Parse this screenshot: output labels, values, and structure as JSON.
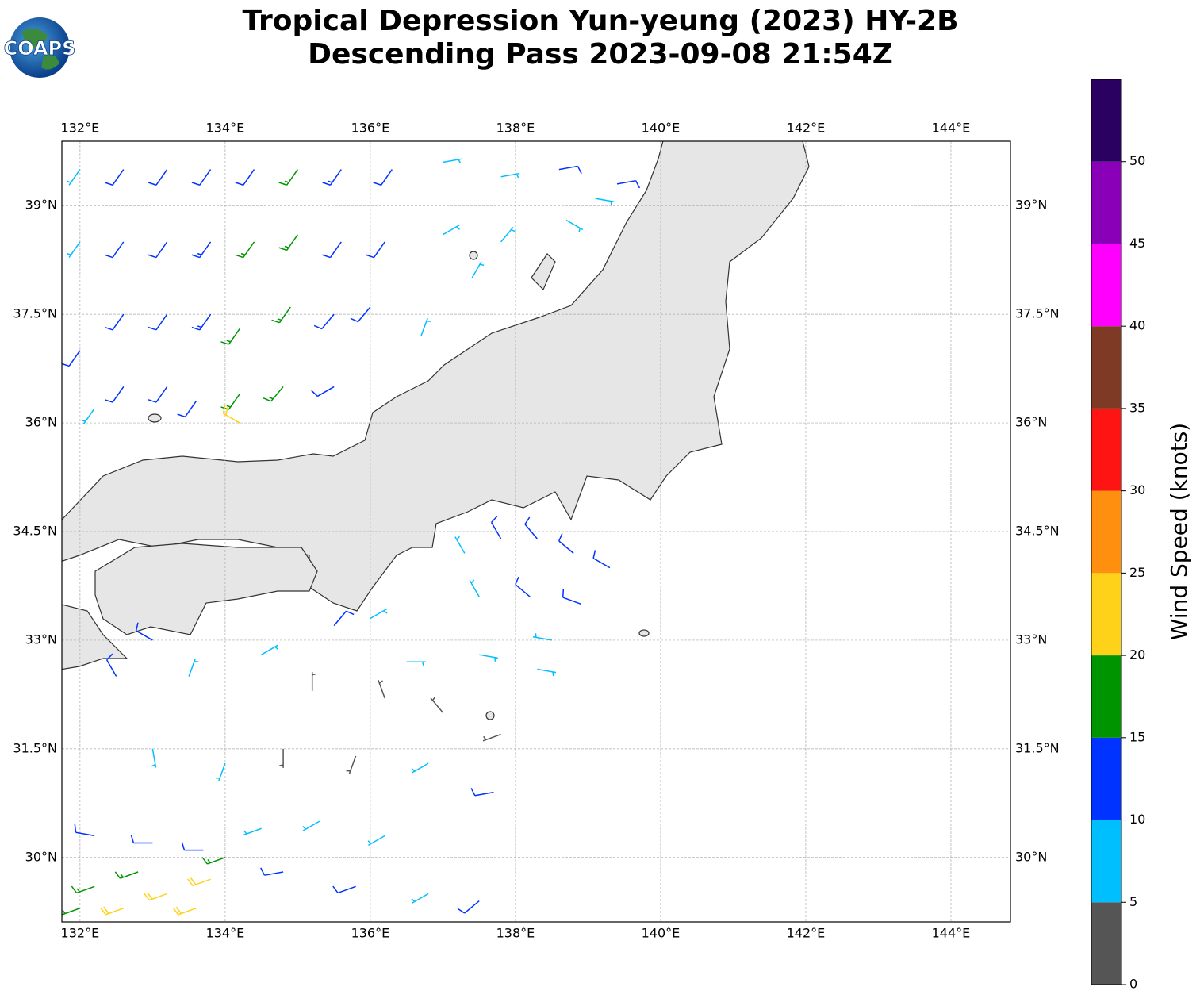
{
  "logo": "COAPS",
  "chart_data": {
    "type": "wind-barbs",
    "title": [
      "Tropical Depression Yun-yeung (2023) HY-2B",
      "Descending Pass 2023-09-08 21:54Z"
    ],
    "xlim": [
      131.75,
      144.82
    ],
    "ylim": [
      29.11,
      39.89
    ],
    "xticks": [
      {
        "value": 132,
        "label": "132°E"
      },
      {
        "value": 134,
        "label": "134°E"
      },
      {
        "value": 136,
        "label": "136°E"
      },
      {
        "value": 138,
        "label": "138°E"
      },
      {
        "value": 140,
        "label": "140°E"
      },
      {
        "value": 142,
        "label": "142°E"
      },
      {
        "value": 144,
        "label": "144°E"
      }
    ],
    "yticks": [
      {
        "value": 30,
        "label": "30°N"
      },
      {
        "value": 31.5,
        "label": "31.5°N"
      },
      {
        "value": 33,
        "label": "33°N"
      },
      {
        "value": 34.5,
        "label": "34.5°N"
      },
      {
        "value": 36,
        "label": "36°N"
      },
      {
        "value": 37.5,
        "label": "37.5°N"
      },
      {
        "value": 39,
        "label": "39°N"
      }
    ],
    "grid": true,
    "colorbar": {
      "label": "Wind Speed (knots)",
      "lim": [
        0,
        55
      ],
      "ticks": [
        0,
        5,
        10,
        15,
        20,
        25,
        30,
        35,
        40,
        45,
        50
      ],
      "colors": [
        "#555555",
        "#00bfff",
        "#0033ff",
        "#009400",
        "#ffd21a",
        "#ff8f0f",
        "#ff1414",
        "#7f3a25",
        "#ff00ff",
        "#8a00b8",
        "#2a0060"
      ]
    },
    "barbs": [
      {
        "lon": 132.0,
        "lat": 39.5,
        "speed": 8,
        "direction": 215
      },
      {
        "lon": 132.0,
        "lat": 38.5,
        "speed": 8,
        "direction": 215
      },
      {
        "lon": 132.0,
        "lat": 37.0,
        "speed": 11,
        "direction": 215
      },
      {
        "lon": 132.2,
        "lat": 36.2,
        "speed": 8,
        "direction": 215
      },
      {
        "lon": 132.6,
        "lat": 39.5,
        "speed": 12,
        "direction": 215
      },
      {
        "lon": 132.6,
        "lat": 38.5,
        "speed": 12,
        "direction": 215
      },
      {
        "lon": 132.6,
        "lat": 37.5,
        "speed": 12,
        "direction": 215
      },
      {
        "lon": 132.6,
        "lat": 36.5,
        "speed": 11,
        "direction": 215
      },
      {
        "lon": 133.2,
        "lat": 39.5,
        "speed": 12,
        "direction": 215
      },
      {
        "lon": 133.2,
        "lat": 38.5,
        "speed": 12,
        "direction": 215
      },
      {
        "lon": 133.2,
        "lat": 37.5,
        "speed": 12,
        "direction": 215
      },
      {
        "lon": 133.2,
        "lat": 36.5,
        "speed": 12,
        "direction": 215
      },
      {
        "lon": 133.8,
        "lat": 39.5,
        "speed": 12,
        "direction": 215
      },
      {
        "lon": 133.8,
        "lat": 38.5,
        "speed": 13,
        "direction": 215
      },
      {
        "lon": 133.8,
        "lat": 37.5,
        "speed": 13,
        "direction": 215
      },
      {
        "lon": 133.6,
        "lat": 36.3,
        "speed": 12,
        "direction": 215
      },
      {
        "lon": 134.4,
        "lat": 39.5,
        "speed": 12,
        "direction": 215
      },
      {
        "lon": 134.4,
        "lat": 38.5,
        "speed": 16,
        "direction": 215
      },
      {
        "lon": 134.2,
        "lat": 37.3,
        "speed": 17,
        "direction": 215
      },
      {
        "lon": 134.2,
        "lat": 36.4,
        "speed": 17,
        "direction": 215
      },
      {
        "lon": 135.0,
        "lat": 39.5,
        "speed": 17,
        "direction": 215
      },
      {
        "lon": 135.0,
        "lat": 38.6,
        "speed": 17,
        "direction": 215
      },
      {
        "lon": 134.9,
        "lat": 37.6,
        "speed": 17,
        "direction": 215
      },
      {
        "lon": 134.8,
        "lat": 36.5,
        "speed": 17,
        "direction": 220
      },
      {
        "lon": 135.6,
        "lat": 39.5,
        "speed": 13,
        "direction": 215
      },
      {
        "lon": 135.6,
        "lat": 38.5,
        "speed": 12,
        "direction": 215
      },
      {
        "lon": 135.5,
        "lat": 37.5,
        "speed": 12,
        "direction": 220
      },
      {
        "lon": 135.5,
        "lat": 36.5,
        "speed": 11,
        "direction": 240
      },
      {
        "lon": 136.3,
        "lat": 39.5,
        "speed": 11,
        "direction": 215
      },
      {
        "lon": 136.2,
        "lat": 38.5,
        "speed": 11,
        "direction": 215
      },
      {
        "lon": 136.0,
        "lat": 37.6,
        "speed": 10,
        "direction": 220
      },
      {
        "lon": 134.2,
        "lat": 36.0,
        "speed": 22,
        "direction": 300
      },
      {
        "lon": 137.0,
        "lat": 39.6,
        "speed": 8,
        "direction": 80
      },
      {
        "lon": 137.8,
        "lat": 39.4,
        "speed": 8,
        "direction": 80
      },
      {
        "lon": 138.6,
        "lat": 39.5,
        "speed": 11,
        "direction": 80
      },
      {
        "lon": 139.4,
        "lat": 39.3,
        "speed": 11,
        "direction": 80
      },
      {
        "lon": 137.0,
        "lat": 38.6,
        "speed": 8,
        "direction": 60
      },
      {
        "lon": 137.8,
        "lat": 38.5,
        "speed": 8,
        "direction": 40
      },
      {
        "lon": 138.7,
        "lat": 38.8,
        "speed": 7,
        "direction": 120
      },
      {
        "lon": 139.1,
        "lat": 39.1,
        "speed": 8,
        "direction": 100
      },
      {
        "lon": 137.4,
        "lat": 38.0,
        "speed": 7,
        "direction": 30
      },
      {
        "lon": 136.7,
        "lat": 37.2,
        "speed": 8,
        "direction": 20
      },
      {
        "lon": 137.3,
        "lat": 34.2,
        "speed": 8,
        "direction": 330
      },
      {
        "lon": 137.8,
        "lat": 34.4,
        "speed": 11,
        "direction": 330
      },
      {
        "lon": 138.3,
        "lat": 34.4,
        "speed": 11,
        "direction": 320
      },
      {
        "lon": 138.8,
        "lat": 34.2,
        "speed": 12,
        "direction": 310
      },
      {
        "lon": 139.3,
        "lat": 34.0,
        "speed": 12,
        "direction": 300
      },
      {
        "lon": 137.5,
        "lat": 33.6,
        "speed": 8,
        "direction": 330
      },
      {
        "lon": 138.2,
        "lat": 33.6,
        "speed": 12,
        "direction": 310
      },
      {
        "lon": 138.9,
        "lat": 33.5,
        "speed": 12,
        "direction": 290
      },
      {
        "lon": 138.5,
        "lat": 33.0,
        "speed": 8,
        "direction": 280
      },
      {
        "lon": 133.0,
        "lat": 33.0,
        "speed": 12,
        "direction": 300
      },
      {
        "lon": 132.5,
        "lat": 32.5,
        "speed": 11,
        "direction": 330
      },
      {
        "lon": 133.5,
        "lat": 32.5,
        "speed": 8,
        "direction": 20
      },
      {
        "lon": 134.5,
        "lat": 32.8,
        "speed": 8,
        "direction": 60
      },
      {
        "lon": 135.5,
        "lat": 33.2,
        "speed": 12,
        "direction": 40
      },
      {
        "lon": 136.0,
        "lat": 33.3,
        "speed": 8,
        "direction": 60
      },
      {
        "lon": 136.5,
        "lat": 32.7,
        "speed": 8,
        "direction": 90
      },
      {
        "lon": 137.5,
        "lat": 32.8,
        "speed": 8,
        "direction": 100
      },
      {
        "lon": 138.3,
        "lat": 32.6,
        "speed": 8,
        "direction": 100
      },
      {
        "lon": 135.2,
        "lat": 32.3,
        "speed": 4,
        "direction": 0
      },
      {
        "lon": 136.2,
        "lat": 32.2,
        "speed": 4,
        "direction": 340
      },
      {
        "lon": 137.0,
        "lat": 32.0,
        "speed": 4,
        "direction": 320
      },
      {
        "lon": 137.8,
        "lat": 31.7,
        "speed": 4,
        "direction": 250
      },
      {
        "lon": 134.8,
        "lat": 31.5,
        "speed": 4,
        "direction": 180
      },
      {
        "lon": 135.8,
        "lat": 31.4,
        "speed": 4,
        "direction": 200
      },
      {
        "lon": 133.0,
        "lat": 31.5,
        "speed": 8,
        "direction": 170
      },
      {
        "lon": 134.0,
        "lat": 31.3,
        "speed": 8,
        "direction": 200
      },
      {
        "lon": 136.8,
        "lat": 31.3,
        "speed": 8,
        "direction": 240
      },
      {
        "lon": 137.7,
        "lat": 30.9,
        "speed": 11,
        "direction": 260
      },
      {
        "lon": 132.2,
        "lat": 30.3,
        "speed": 12,
        "direction": 280
      },
      {
        "lon": 133.0,
        "lat": 30.2,
        "speed": 12,
        "direction": 270
      },
      {
        "lon": 133.7,
        "lat": 30.1,
        "speed": 12,
        "direction": 270
      },
      {
        "lon": 134.5,
        "lat": 30.4,
        "speed": 8,
        "direction": 250
      },
      {
        "lon": 135.3,
        "lat": 30.5,
        "speed": 8,
        "direction": 240
      },
      {
        "lon": 136.2,
        "lat": 30.3,
        "speed": 8,
        "direction": 240
      },
      {
        "lon": 134.8,
        "lat": 29.8,
        "speed": 11,
        "direction": 260
      },
      {
        "lon": 135.8,
        "lat": 29.6,
        "speed": 11,
        "direction": 250
      },
      {
        "lon": 136.8,
        "lat": 29.5,
        "speed": 8,
        "direction": 240
      },
      {
        "lon": 137.5,
        "lat": 29.4,
        "speed": 11,
        "direction": 230
      },
      {
        "lon": 132.2,
        "lat": 29.6,
        "speed": 17,
        "direction": 250
      },
      {
        "lon": 132.8,
        "lat": 29.8,
        "speed": 18,
        "direction": 250
      },
      {
        "lon": 133.2,
        "lat": 29.5,
        "speed": 22,
        "direction": 250
      },
      {
        "lon": 133.8,
        "lat": 29.7,
        "speed": 22,
        "direction": 250
      },
      {
        "lon": 132.6,
        "lat": 29.3,
        "speed": 22,
        "direction": 250
      },
      {
        "lon": 133.6,
        "lat": 29.3,
        "speed": 22,
        "direction": 250
      },
      {
        "lon": 134.0,
        "lat": 30.0,
        "speed": 17,
        "direction": 250
      },
      {
        "lon": 132.0,
        "lat": 29.3,
        "speed": 17,
        "direction": 250
      }
    ]
  }
}
